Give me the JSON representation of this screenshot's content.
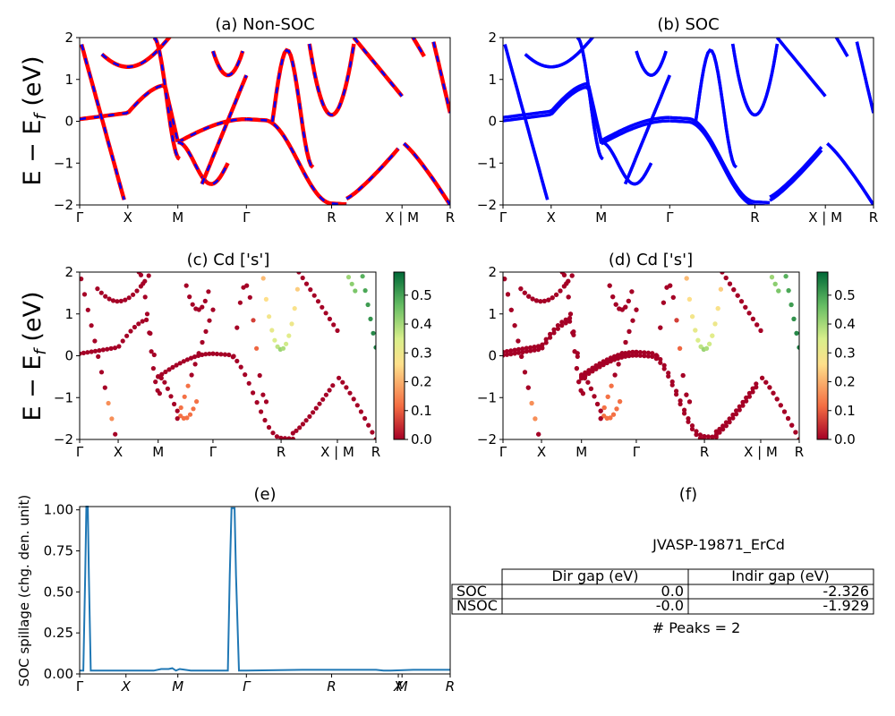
{
  "colors": {
    "nonsoc_red": "#ff0000",
    "nonsoc_blue": "#0000ff",
    "soc_blue": "#0000ff",
    "spillage_line": "#1f77b4",
    "colormap": [
      "#a50026",
      "#f46d43",
      "#fee08b",
      "#d9ef8b",
      "#66bd63",
      "#006837"
    ]
  },
  "panels": {
    "a": {
      "title": "(a) Non-SOC"
    },
    "b": {
      "title": "(b) SOC"
    },
    "c": {
      "title": "(c)  Cd ['s']"
    },
    "d": {
      "title": "(d) Cd ['s']"
    },
    "e": {
      "title": "(e)"
    },
    "f": {
      "title": "(f)"
    }
  },
  "band_ylabel": "E − E",
  "band_ylabel_sub": "f",
  "band_ylabel_unit": " (eV)",
  "spillage_ylabel": "SOC spillage (chg. den. unit)",
  "kpath_labels": [
    "Γ",
    "X",
    "M",
    "Γ",
    "R",
    "X | M",
    "R"
  ],
  "kpath_frac": [
    0,
    0.13,
    0.265,
    0.45,
    0.68,
    0.87,
    1.0
  ],
  "spillage_kpath_labels": [
    "Γ",
    "X",
    "M",
    "Γ",
    "R",
    "X",
    "M",
    "R"
  ],
  "colorbar_ticks": [
    "0.0",
    "0.1",
    "0.2",
    "0.3",
    "0.4",
    "0.5"
  ],
  "table": {
    "jid": "JVASP-19871_ErCd",
    "headers": [
      "Dir gap (eV)",
      "Indir gap (eV)"
    ],
    "rows": [
      {
        "label": "SOC",
        "dir": "0.0",
        "indir": "-2.326"
      },
      {
        "label": "NSOC",
        "dir": "-0.0",
        "indir": "-1.929"
      }
    ],
    "peaks": "# Peaks = 2"
  },
  "chart_data": [
    {
      "type": "line",
      "panel": "a",
      "title": "(a) Non-SOC",
      "ylabel": "E − E_f (eV)",
      "ylim": [
        -2,
        2
      ],
      "yticks": [
        -2,
        -1,
        0,
        1,
        2
      ],
      "xticks": [
        "Γ",
        "X",
        "M",
        "Γ",
        "R",
        "X | M",
        "R"
      ],
      "series": [
        {
          "x": [
            0,
            0.04,
            0.09,
            0.14,
            0.2,
            0.26,
            0.35,
            0.45
          ],
          "y": [
            0.05,
            0.07,
            0.12,
            0.2,
            0.35,
            0.55,
            0.75,
            0.05
          ]
        },
        {
          "x": [
            0.45,
            0.5,
            0.55,
            0.6,
            0.65,
            0.68,
            0.72,
            0.78,
            0.85
          ],
          "y": [
            0.05,
            0.0,
            -0.3,
            -0.9,
            -1.6,
            -1.9,
            -1.8,
            -1.3,
            -0.7
          ]
        },
        {
          "x": [
            0.26,
            0.3,
            0.35,
            0.4,
            0.45
          ],
          "y": [
            -0.5,
            -0.8,
            -1.5,
            -1.2,
            1.1
          ]
        }
      ]
    },
    {
      "type": "line",
      "panel": "b",
      "title": "(b) SOC",
      "ylim": [
        -2,
        2
      ],
      "yticks": [
        -2,
        -1,
        0,
        1,
        2
      ],
      "xticks": [
        "Γ",
        "X",
        "M",
        "Γ",
        "R",
        "X | M",
        "R"
      ],
      "series": [
        {
          "x": [
            0,
            0.04,
            0.09,
            0.14,
            0.2,
            0.26,
            0.35,
            0.45
          ],
          "y": [
            0.1,
            0.13,
            0.18,
            0.25,
            0.35,
            0.55,
            0.75,
            0.1
          ]
        },
        {
          "x": [
            0.45,
            0.5,
            0.55,
            0.6,
            0.65,
            0.68,
            0.72,
            0.78,
            0.85
          ],
          "y": [
            0.1,
            0.05,
            -0.3,
            -0.9,
            -1.6,
            -1.85,
            -1.8,
            -1.3,
            -0.7
          ]
        }
      ]
    },
    {
      "type": "scatter",
      "panel": "c",
      "title": "(c)  Cd ['s']",
      "ylabel": "E − E_f (eV)",
      "ylim": [
        -2,
        2
      ],
      "yticks": [
        -2,
        -1,
        0,
        1,
        2
      ],
      "xticks": [
        "Γ",
        "X",
        "M",
        "Γ",
        "R",
        "X | M",
        "R"
      ],
      "colorbar_range": [
        0.0,
        0.58
      ],
      "colorbar_ticks": [
        0.0,
        0.1,
        0.2,
        0.3,
        0.4,
        0.5
      ]
    },
    {
      "type": "scatter",
      "panel": "d",
      "title": "(d) Cd ['s']",
      "ylim": [
        -2,
        2
      ],
      "yticks": [
        -2,
        -1,
        0,
        1,
        2
      ],
      "xticks": [
        "Γ",
        "X",
        "M",
        "Γ",
        "R",
        "X | M",
        "R"
      ],
      "colorbar_range": [
        0.0,
        0.58
      ],
      "colorbar_ticks": [
        0.0,
        0.1,
        0.2,
        0.3,
        0.4,
        0.5
      ]
    },
    {
      "type": "line",
      "panel": "e",
      "title": "(e)",
      "ylabel": "SOC spillage (chg. den. unit)",
      "ylim": [
        0,
        1.02
      ],
      "yticks": [
        0.0,
        0.25,
        0.5,
        0.75,
        1.0
      ],
      "xticks": [
        "Γ",
        "X",
        "M",
        "Γ",
        "R",
        "X",
        "M",
        "R"
      ],
      "x": [
        0,
        0.01,
        0.015,
        0.018,
        0.022,
        0.025,
        0.03,
        0.04,
        0.2,
        0.22,
        0.24,
        0.25,
        0.26,
        0.27,
        0.3,
        0.4,
        0.405,
        0.41,
        0.418,
        0.422,
        0.43,
        0.45,
        0.6,
        0.8,
        0.82,
        0.84,
        0.9,
        1.0
      ],
      "y": [
        0.02,
        0.02,
        0.6,
        1.02,
        1.02,
        0.6,
        0.02,
        0.02,
        0.02,
        0.03,
        0.03,
        0.035,
        0.02,
        0.03,
        0.02,
        0.02,
        0.6,
        1.01,
        1.01,
        0.6,
        0.02,
        0.02,
        0.025,
        0.025,
        0.02,
        0.02,
        0.025,
        0.025
      ]
    }
  ]
}
